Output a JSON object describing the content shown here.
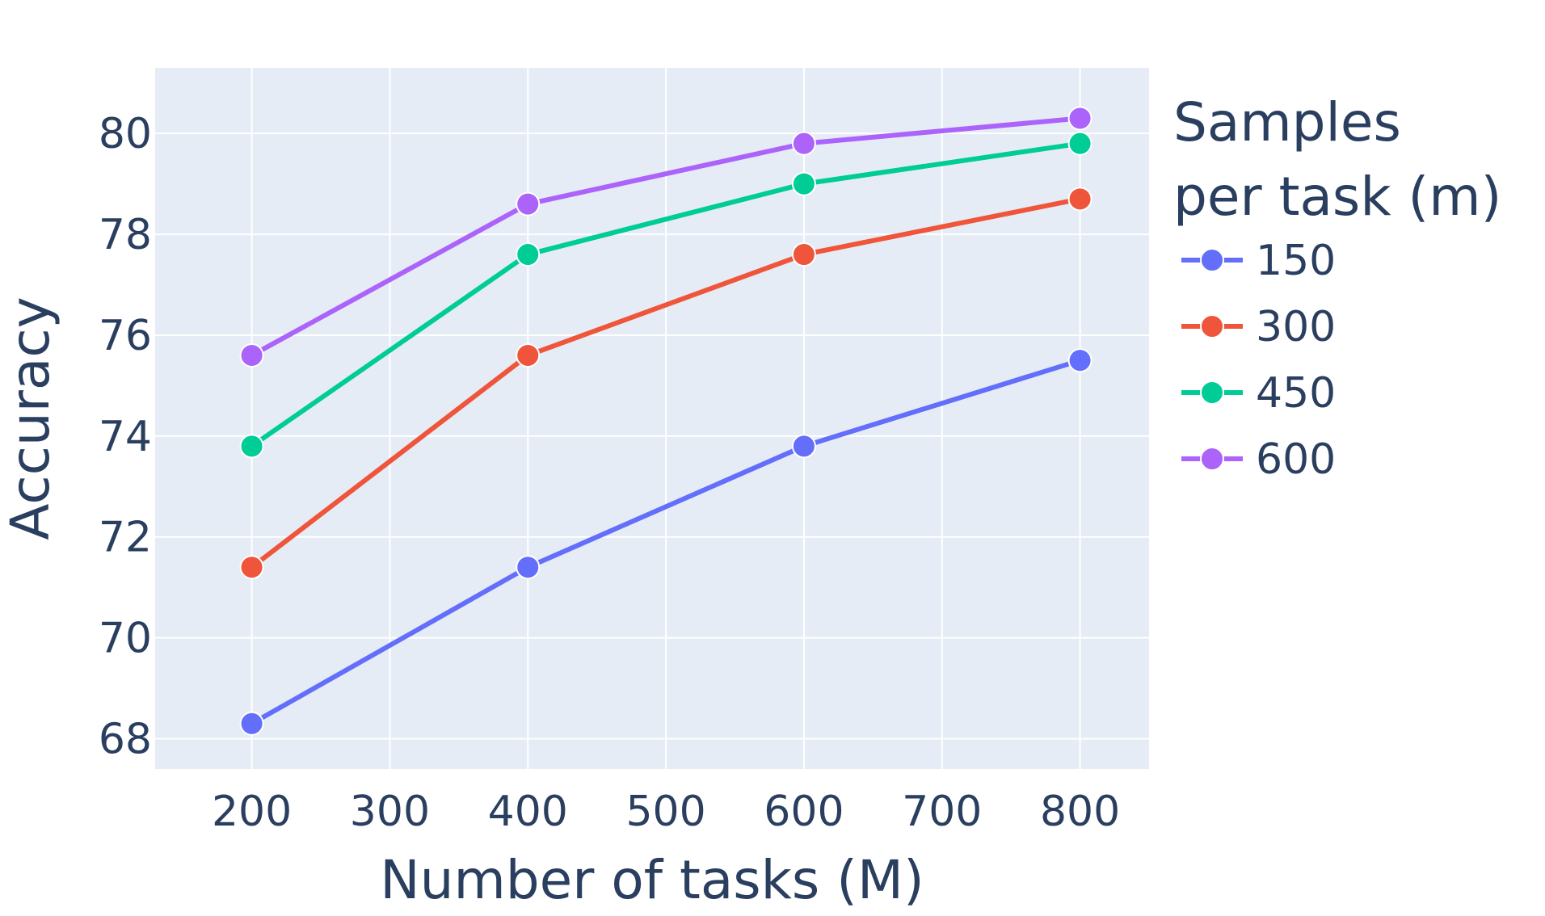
{
  "chart_data": {
    "type": "line",
    "xlabel": "Number of tasks (M)",
    "ylabel": "Accuracy",
    "x": [
      200,
      400,
      600,
      800
    ],
    "xlim": [
      130,
      850
    ],
    "ylim": [
      67.4,
      81.3
    ],
    "xticks": [
      200,
      300,
      400,
      500,
      600,
      700,
      800
    ],
    "yticks": [
      68,
      70,
      72,
      74,
      76,
      78,
      80
    ],
    "grid": true,
    "legend": {
      "title_lines": [
        "Samples",
        "per task (m)"
      ],
      "placement": "right"
    },
    "series": [
      {
        "name": "150",
        "color": "#636efa",
        "values": [
          68.3,
          71.4,
          73.8,
          75.5
        ]
      },
      {
        "name": "300",
        "color": "#ef553b",
        "values": [
          71.4,
          75.6,
          77.6,
          78.7
        ]
      },
      {
        "name": "450",
        "color": "#00cc96",
        "values": [
          73.8,
          77.6,
          79.0,
          79.8
        ]
      },
      {
        "name": "600",
        "color": "#ab63fa",
        "values": [
          75.6,
          78.6,
          79.8,
          80.3
        ]
      }
    ],
    "colors": {
      "plot_bg": "#e5ecf6",
      "grid": "#ffffff",
      "text": "#2a3f5f"
    }
  }
}
